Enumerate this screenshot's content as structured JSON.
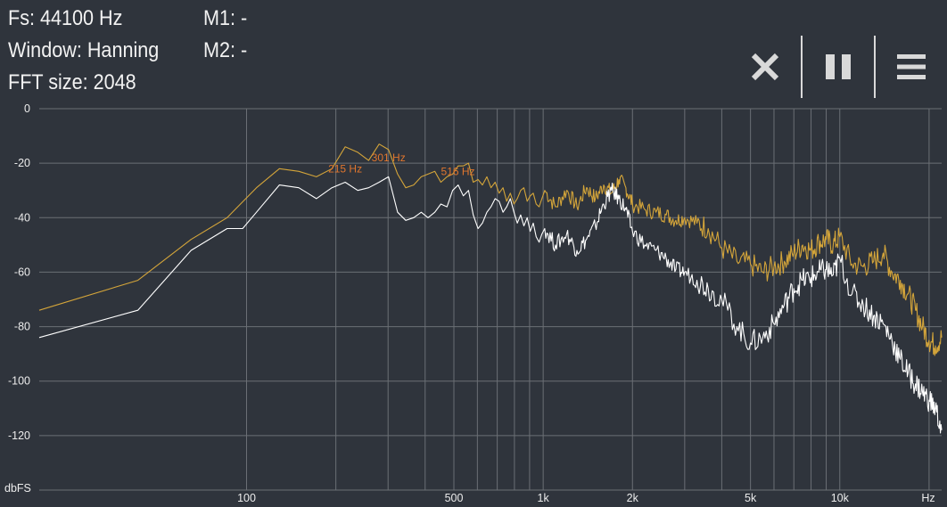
{
  "info": {
    "fs": "Fs: 44100 Hz",
    "window": "Window: Hanning",
    "fft_size": "FFT size: 2048",
    "m1": "M1: -",
    "m2": "M2: -"
  },
  "toolbar": {
    "close_icon": "close-icon",
    "pause_icon": "pause-icon",
    "menu_icon": "menu-icon"
  },
  "colors": {
    "background": "#2f343c",
    "grid": "#6b6f75",
    "peak_hold": "#d4a53a",
    "current": "#ffffff",
    "peak_label": "#e0762e"
  },
  "chart_data": {
    "type": "line",
    "xscale": "log",
    "xlim": [
      20,
      22050
    ],
    "ylim": [
      -140,
      0
    ],
    "ylabel": "dbFS",
    "xunit": "Hz",
    "yticks": [
      0,
      -20,
      -40,
      -60,
      -80,
      -100,
      -120
    ],
    "xtick_labels": [
      {
        "v": 100,
        "label": "100"
      },
      {
        "v": 500,
        "label": "500"
      },
      {
        "v": 1000,
        "label": "1k"
      },
      {
        "v": 2000,
        "label": "2k"
      },
      {
        "v": 5000,
        "label": "5k"
      },
      {
        "v": 10000,
        "label": "10k"
      }
    ],
    "x_gridlines": [
      100,
      200,
      300,
      400,
      500,
      600,
      700,
      800,
      900,
      1000,
      2000,
      3000,
      4000,
      5000,
      6000,
      7000,
      8000,
      9000,
      10000,
      20000
    ],
    "peak_labels": [
      {
        "label": "215 Hz",
        "x": 215,
        "y": -24
      },
      {
        "label": "301 Hz",
        "x": 301,
        "y": -20
      },
      {
        "label": "516 Hz",
        "x": 516,
        "y": -25
      }
    ],
    "series": [
      {
        "color": "#d4a53a",
        "points": [
          [
            20,
            -74
          ],
          [
            43,
            -63
          ],
          [
            65,
            -48
          ],
          [
            86,
            -40
          ],
          [
            108,
            -29
          ],
          [
            129,
            -22
          ],
          [
            150,
            -23
          ],
          [
            172,
            -25
          ],
          [
            194,
            -22
          ],
          [
            215,
            -14
          ],
          [
            237,
            -16
          ],
          [
            258,
            -19
          ],
          [
            280,
            -13
          ],
          [
            301,
            -15
          ],
          [
            323,
            -24
          ],
          [
            344,
            -29
          ],
          [
            366,
            -28
          ],
          [
            388,
            -25
          ],
          [
            409,
            -24
          ],
          [
            431,
            -23
          ],
          [
            452,
            -27
          ],
          [
            474,
            -25
          ],
          [
            495,
            -24
          ],
          [
            517,
            -21
          ],
          [
            538,
            -21
          ],
          [
            560,
            -20
          ],
          [
            581,
            -27
          ],
          [
            603,
            -26
          ],
          [
            624,
            -28
          ],
          [
            646,
            -25
          ],
          [
            667,
            -29
          ],
          [
            689,
            -27
          ],
          [
            710,
            -31
          ],
          [
            732,
            -29
          ],
          [
            753,
            -34
          ],
          [
            775,
            -31
          ],
          [
            797,
            -35
          ],
          [
            818,
            -33
          ],
          [
            840,
            -30
          ],
          [
            861,
            -29
          ],
          [
            883,
            -34
          ],
          [
            904,
            -32
          ],
          [
            926,
            -31
          ],
          [
            947,
            -35
          ],
          [
            969,
            -36
          ],
          [
            990,
            -33
          ],
          [
            1012,
            -30
          ],
          [
            1100,
            -36
          ],
          [
            1200,
            -30
          ],
          [
            1300,
            -36
          ],
          [
            1400,
            -29
          ],
          [
            1500,
            -33
          ],
          [
            1600,
            -28
          ],
          [
            1700,
            -31
          ],
          [
            1800,
            -26
          ],
          [
            1900,
            -29
          ],
          [
            2000,
            -35
          ],
          [
            2200,
            -37
          ],
          [
            2400,
            -38
          ],
          [
            2600,
            -39
          ],
          [
            2800,
            -41
          ],
          [
            3000,
            -40
          ],
          [
            3300,
            -42
          ],
          [
            3600,
            -44
          ],
          [
            4000,
            -51
          ],
          [
            4500,
            -56
          ],
          [
            5000,
            -57
          ],
          [
            5500,
            -60
          ],
          [
            6000,
            -58
          ],
          [
            6500,
            -56
          ],
          [
            7000,
            -53
          ],
          [
            7500,
            -50
          ],
          [
            8000,
            -52
          ],
          [
            8500,
            -49
          ],
          [
            9000,
            -48
          ],
          [
            9500,
            -50
          ],
          [
            10000,
            -47
          ],
          [
            11000,
            -57
          ],
          [
            12000,
            -58
          ],
          [
            13000,
            -56
          ],
          [
            14000,
            -53
          ],
          [
            15000,
            -60
          ],
          [
            16000,
            -63
          ],
          [
            17000,
            -68
          ],
          [
            18000,
            -74
          ],
          [
            19000,
            -80
          ],
          [
            20000,
            -85
          ],
          [
            21000,
            -87
          ],
          [
            22050,
            -84
          ]
        ]
      },
      {
        "color": "#ffffff",
        "points": [
          [
            20,
            -84
          ],
          [
            43,
            -74
          ],
          [
            65,
            -52
          ],
          [
            86,
            -44
          ],
          [
            97,
            -44
          ],
          [
            108,
            -38
          ],
          [
            129,
            -28
          ],
          [
            150,
            -29
          ],
          [
            172,
            -33
          ],
          [
            194,
            -29
          ],
          [
            215,
            -27
          ],
          [
            237,
            -30
          ],
          [
            258,
            -29
          ],
          [
            280,
            -27
          ],
          [
            301,
            -25
          ],
          [
            323,
            -38
          ],
          [
            344,
            -41
          ],
          [
            366,
            -40
          ],
          [
            388,
            -38
          ],
          [
            409,
            -40
          ],
          [
            431,
            -38
          ],
          [
            452,
            -35
          ],
          [
            474,
            -36
          ],
          [
            495,
            -30
          ],
          [
            517,
            -28
          ],
          [
            538,
            -32
          ],
          [
            560,
            -30
          ],
          [
            581,
            -39
          ],
          [
            603,
            -44
          ],
          [
            624,
            -42
          ],
          [
            646,
            -38
          ],
          [
            667,
            -36
          ],
          [
            689,
            -33
          ],
          [
            710,
            -34
          ],
          [
            732,
            -38
          ],
          [
            753,
            -36
          ],
          [
            775,
            -33
          ],
          [
            797,
            -38
          ],
          [
            818,
            -42
          ],
          [
            840,
            -39
          ],
          [
            861,
            -43
          ],
          [
            883,
            -40
          ],
          [
            904,
            -45
          ],
          [
            926,
            -42
          ],
          [
            947,
            -47
          ],
          [
            969,
            -49
          ],
          [
            990,
            -46
          ],
          [
            1012,
            -44
          ],
          [
            1100,
            -50
          ],
          [
            1200,
            -46
          ],
          [
            1300,
            -52
          ],
          [
            1400,
            -48
          ],
          [
            1500,
            -43
          ],
          [
            1600,
            -35
          ],
          [
            1700,
            -30
          ],
          [
            1800,
            -33
          ],
          [
            1900,
            -37
          ],
          [
            2000,
            -45
          ],
          [
            2200,
            -50
          ],
          [
            2400,
            -52
          ],
          [
            2600,
            -55
          ],
          [
            2800,
            -59
          ],
          [
            3000,
            -60
          ],
          [
            3300,
            -63
          ],
          [
            3600,
            -66
          ],
          [
            4000,
            -70
          ],
          [
            4500,
            -80
          ],
          [
            5000,
            -86
          ],
          [
            5500,
            -84
          ],
          [
            6000,
            -79
          ],
          [
            6500,
            -72
          ],
          [
            7000,
            -66
          ],
          [
            7500,
            -63
          ],
          [
            8000,
            -62
          ],
          [
            8500,
            -60
          ],
          [
            9000,
            -59
          ],
          [
            9500,
            -61
          ],
          [
            10000,
            -55
          ],
          [
            11000,
            -68
          ],
          [
            12000,
            -72
          ],
          [
            13000,
            -76
          ],
          [
            14000,
            -79
          ],
          [
            15000,
            -85
          ],
          [
            16000,
            -92
          ],
          [
            17000,
            -97
          ],
          [
            18000,
            -101
          ],
          [
            19000,
            -104
          ],
          [
            20000,
            -107
          ],
          [
            21000,
            -110
          ],
          [
            22050,
            -118
          ]
        ]
      }
    ]
  }
}
